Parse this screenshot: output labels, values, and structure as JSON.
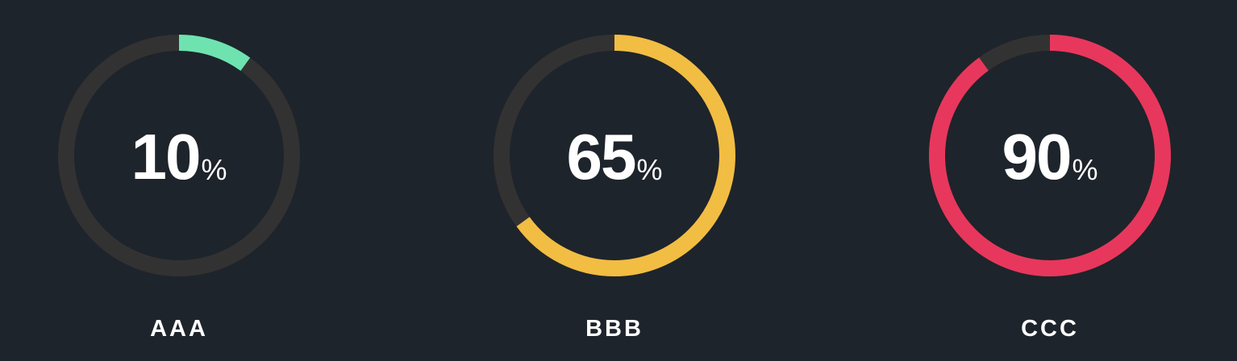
{
  "chart_data": [
    {
      "type": "gauge",
      "label": "AAA",
      "value": 10,
      "unit": "%",
      "max": 100,
      "color": "#6ee3b0"
    },
    {
      "type": "gauge",
      "label": "BBB",
      "value": 65,
      "unit": "%",
      "max": 100,
      "color": "#f2bd43"
    },
    {
      "type": "gauge",
      "label": "CCC",
      "value": 90,
      "unit": "%",
      "max": 100,
      "color": "#e8375c"
    }
  ],
  "colors": {
    "background": "#1e242b",
    "track": "#333232",
    "text": "#ffffff"
  }
}
